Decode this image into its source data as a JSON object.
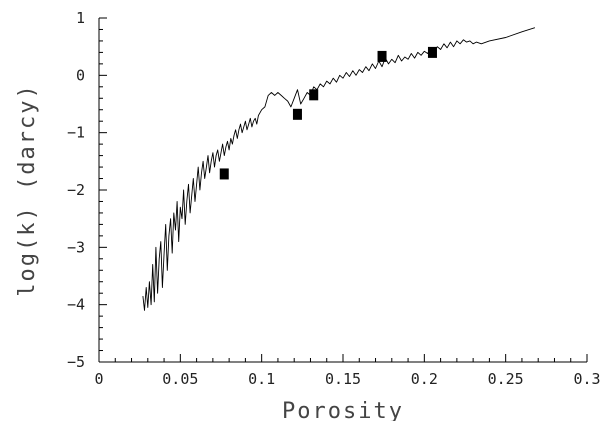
{
  "chart_data": {
    "type": "scatter",
    "xlabel": "Porosity",
    "ylabel": "log(k)  (darcy)",
    "xlim": [
      0,
      0.3
    ],
    "ylim": [
      -5,
      1
    ],
    "x_ticks": [
      0,
      0.05,
      0.1,
      0.15,
      0.2,
      0.25,
      0.3
    ],
    "x_tick_labels": [
      "0",
      "0.05",
      "0.1",
      "0.15",
      "0.2",
      "0.25",
      "0.3"
    ],
    "y_ticks": [
      -5,
      -4,
      -3,
      -2,
      -1,
      0,
      1
    ],
    "y_tick_labels": [
      "−5",
      "−4",
      "−3",
      "−2",
      "−1",
      "0",
      "1"
    ],
    "grid": false,
    "legend": "none",
    "series": [
      {
        "kind": "line",
        "color": "#000000",
        "x": [
          0.027,
          0.028,
          0.029,
          0.03,
          0.031,
          0.032,
          0.033,
          0.034,
          0.035,
          0.036,
          0.037,
          0.038,
          0.039,
          0.04,
          0.041,
          0.042,
          0.043,
          0.044,
          0.045,
          0.046,
          0.047,
          0.048,
          0.049,
          0.05,
          0.051,
          0.052,
          0.053,
          0.054,
          0.055,
          0.056,
          0.057,
          0.058,
          0.059,
          0.06,
          0.061,
          0.062,
          0.063,
          0.064,
          0.065,
          0.066,
          0.067,
          0.068,
          0.069,
          0.07,
          0.071,
          0.072,
          0.073,
          0.074,
          0.075,
          0.076,
          0.077,
          0.078,
          0.079,
          0.08,
          0.081,
          0.082,
          0.083,
          0.084,
          0.085,
          0.086,
          0.087,
          0.088,
          0.089,
          0.09,
          0.091,
          0.092,
          0.093,
          0.094,
          0.095,
          0.096,
          0.097,
          0.098,
          0.1,
          0.102,
          0.104,
          0.106,
          0.108,
          0.11,
          0.112,
          0.114,
          0.116,
          0.118,
          0.12,
          0.122,
          0.124,
          0.126,
          0.128,
          0.13,
          0.132,
          0.134,
          0.136,
          0.138,
          0.14,
          0.142,
          0.144,
          0.146,
          0.148,
          0.15,
          0.152,
          0.154,
          0.156,
          0.158,
          0.16,
          0.162,
          0.164,
          0.166,
          0.168,
          0.17,
          0.172,
          0.174,
          0.176,
          0.178,
          0.18,
          0.182,
          0.184,
          0.186,
          0.188,
          0.19,
          0.192,
          0.194,
          0.196,
          0.198,
          0.2,
          0.202,
          0.204,
          0.206,
          0.208,
          0.21,
          0.212,
          0.214,
          0.216,
          0.218,
          0.22,
          0.222,
          0.224,
          0.226,
          0.228,
          0.23,
          0.232,
          0.235,
          0.24,
          0.25,
          0.26,
          0.268
        ],
        "y": [
          -3.85,
          -4.1,
          -3.7,
          -4.05,
          -3.6,
          -4.0,
          -3.3,
          -3.95,
          -3.0,
          -3.8,
          -3.2,
          -2.9,
          -3.7,
          -3.1,
          -2.6,
          -3.4,
          -2.8,
          -2.5,
          -3.1,
          -2.4,
          -2.7,
          -2.2,
          -2.9,
          -2.3,
          -2.5,
          -2.0,
          -2.6,
          -2.2,
          -1.9,
          -2.4,
          -2.1,
          -1.8,
          -2.2,
          -1.9,
          -1.6,
          -2.0,
          -1.7,
          -1.5,
          -1.8,
          -1.6,
          -1.4,
          -1.7,
          -1.5,
          -1.35,
          -1.6,
          -1.4,
          -1.3,
          -1.5,
          -1.35,
          -1.2,
          -1.4,
          -1.25,
          -1.15,
          -1.3,
          -1.1,
          -1.2,
          -1.05,
          -0.95,
          -1.1,
          -0.95,
          -0.85,
          -1.0,
          -0.9,
          -0.8,
          -0.95,
          -0.85,
          -0.75,
          -0.9,
          -0.8,
          -0.75,
          -0.85,
          -0.7,
          -0.6,
          -0.55,
          -0.35,
          -0.3,
          -0.35,
          -0.3,
          -0.35,
          -0.4,
          -0.45,
          -0.55,
          -0.4,
          -0.25,
          -0.5,
          -0.4,
          -0.3,
          -0.35,
          -0.2,
          -0.25,
          -0.15,
          -0.2,
          -0.1,
          -0.15,
          -0.05,
          -0.12,
          0.0,
          -0.05,
          0.05,
          -0.02,
          0.08,
          0.0,
          0.1,
          0.05,
          0.15,
          0.08,
          0.2,
          0.12,
          0.25,
          0.15,
          0.3,
          0.2,
          0.28,
          0.22,
          0.35,
          0.25,
          0.32,
          0.28,
          0.38,
          0.3,
          0.4,
          0.35,
          0.42,
          0.38,
          0.48,
          0.4,
          0.5,
          0.45,
          0.55,
          0.48,
          0.58,
          0.5,
          0.6,
          0.55,
          0.62,
          0.58,
          0.6,
          0.55,
          0.58,
          0.55,
          0.6,
          0.66,
          0.76,
          0.83
        ]
      },
      {
        "kind": "marker",
        "color": "#000000",
        "x": [
          0.077,
          0.122,
          0.132,
          0.174,
          0.205
        ],
        "y": [
          -1.72,
          -0.68,
          -0.34,
          0.33,
          0.4
        ]
      }
    ]
  }
}
